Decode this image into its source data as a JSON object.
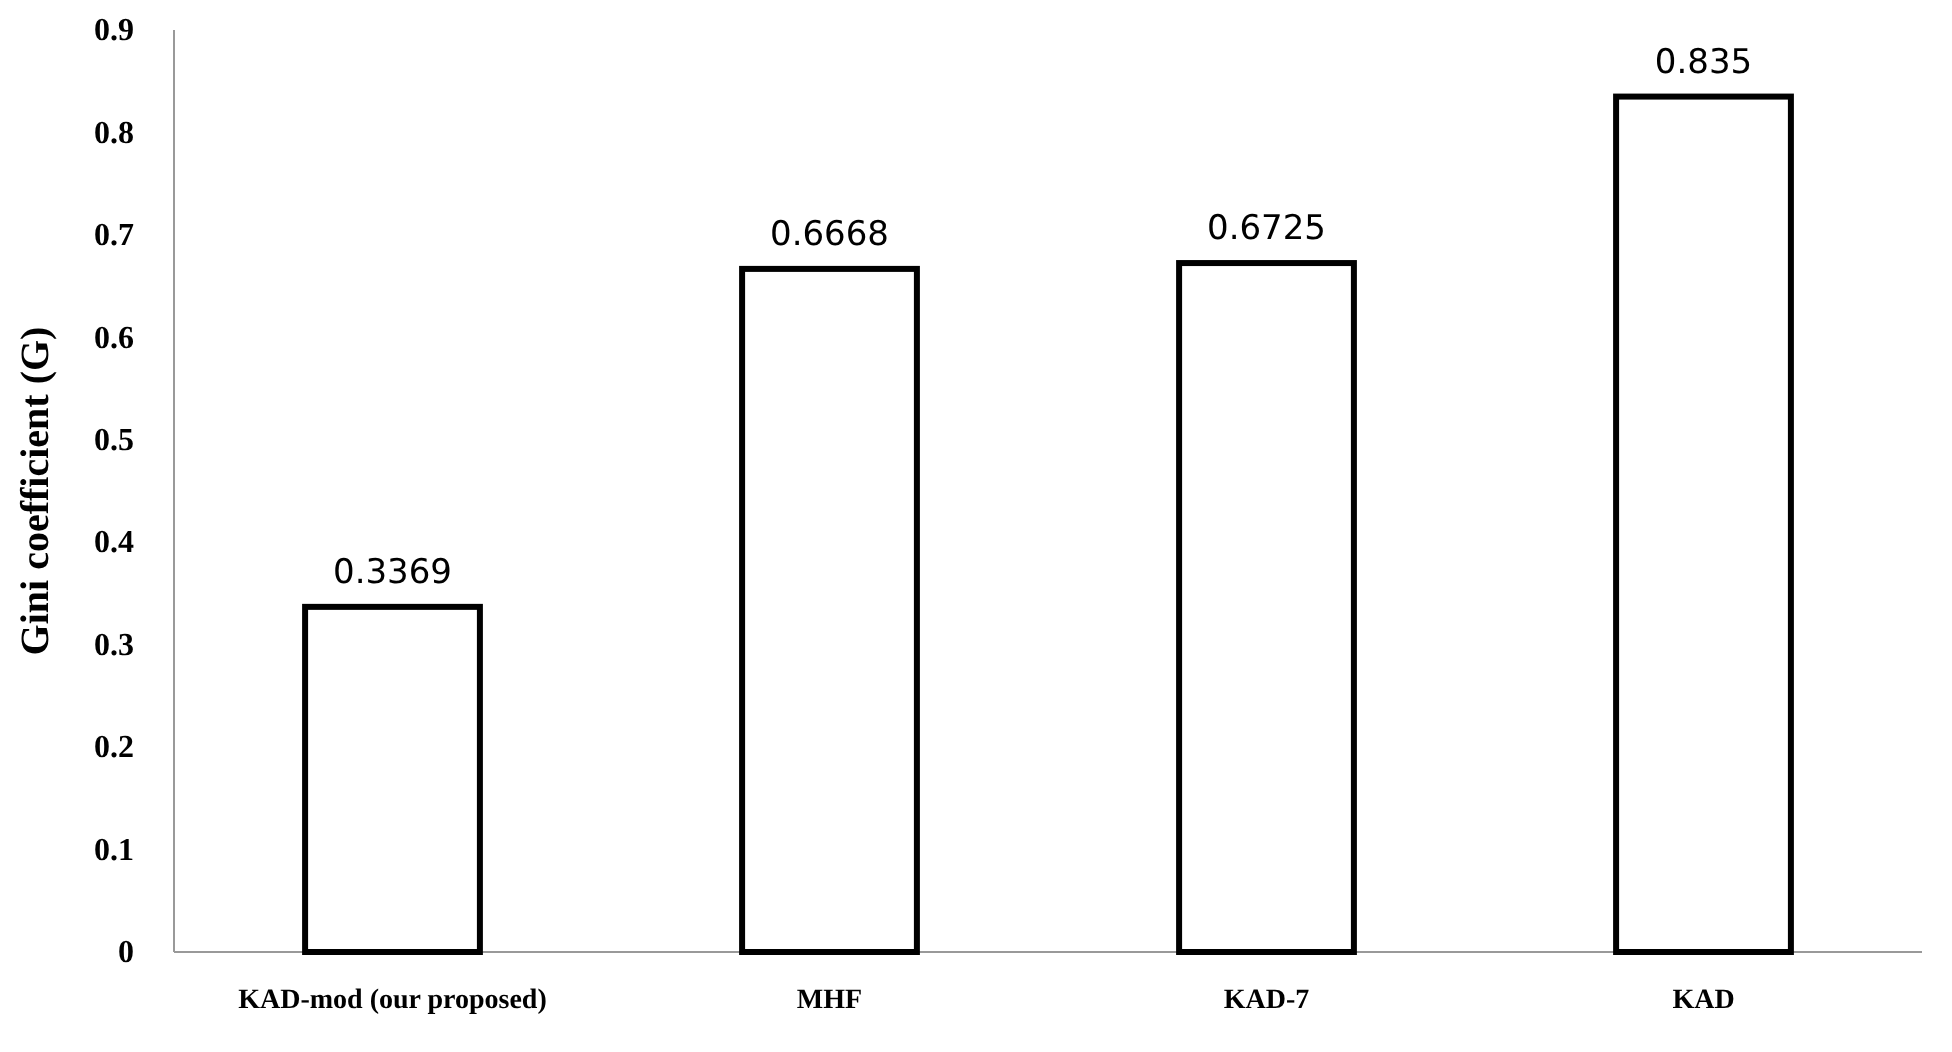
{
  "chart_data": {
    "type": "bar",
    "ylabel": "Gini coefficient (G)",
    "categories": [
      "KAD-mod (our proposed)",
      "MHF",
      "KAD-7",
      "KAD"
    ],
    "values": [
      0.3369,
      0.6668,
      0.6725,
      0.835
    ],
    "color": "#ffffff",
    "ylim": [
      0,
      0.9
    ],
    "yticks": [
      0,
      0.1,
      0.2,
      0.3,
      0.4,
      0.5,
      0.6,
      0.7,
      0.8,
      0.9
    ],
    "data_labels": true
  }
}
